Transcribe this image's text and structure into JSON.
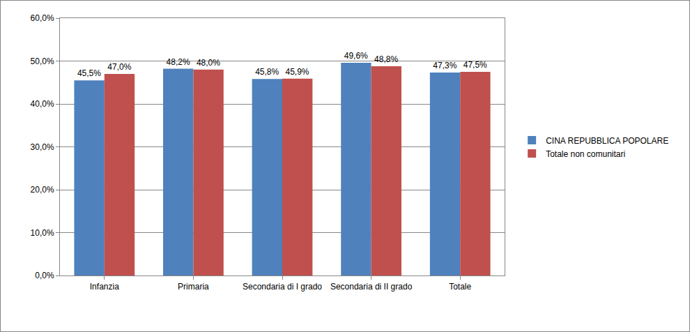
{
  "chart_data": {
    "type": "bar",
    "categories": [
      "Infanzia",
      "Primaria",
      "Secondaria di I grado",
      "Secondaria di II grado",
      "Totale"
    ],
    "series": [
      {
        "name": "CINA REPUBBLICA POPOLARE",
        "color": "#4F81BD",
        "values": [
          45.5,
          48.2,
          45.8,
          49.6,
          47.3
        ],
        "value_labels": [
          "45,5%",
          "48,2%",
          "45,8%",
          "49,6%",
          "47,3%"
        ]
      },
      {
        "name": "Totale non comunitari",
        "color": "#C0504D",
        "values": [
          47.0,
          48.0,
          45.9,
          48.8,
          47.5
        ],
        "value_labels": [
          "47,0%",
          "48,0%",
          "45,9%",
          "48,8%",
          "47,5%"
        ]
      }
    ],
    "ylim": [
      0,
      60
    ],
    "yticks": [
      {
        "value": 0,
        "label": "0,0%"
      },
      {
        "value": 10,
        "label": "10,0%"
      },
      {
        "value": 20,
        "label": "20,0%"
      },
      {
        "value": 30,
        "label": "30,0%"
      },
      {
        "value": 40,
        "label": "40,0%"
      },
      {
        "value": 50,
        "label": "50,0%"
      },
      {
        "value": 60,
        "label": "60,0%"
      }
    ],
    "grid": true,
    "data_labels": true,
    "legend": "right"
  }
}
